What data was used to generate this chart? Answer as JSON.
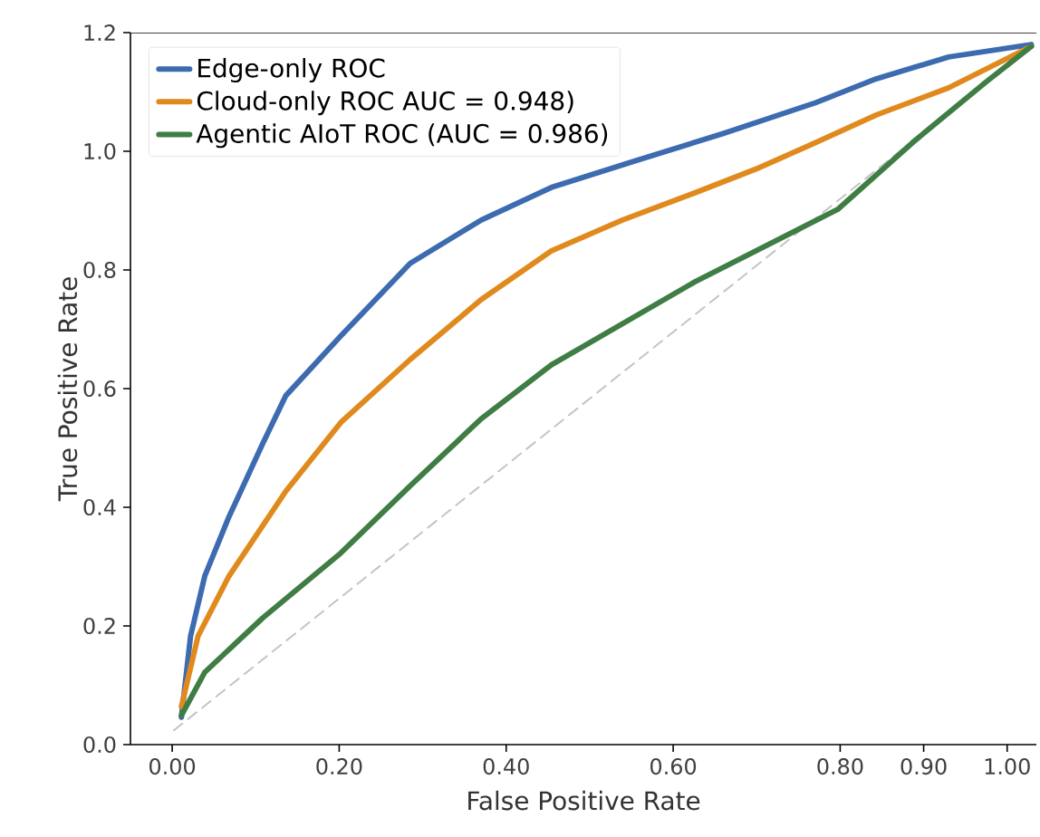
{
  "chart_data": {
    "type": "line",
    "xlabel": "False Positive Rate",
    "ylabel": "True Positive Rate",
    "xlim": [
      -0.05,
      1.035
    ],
    "ylim": [
      0,
      1.2
    ],
    "xticks": [
      {
        "value": 0,
        "label": "0.00"
      },
      {
        "value": 0.2,
        "label": "0.20"
      },
      {
        "value": 0.4,
        "label": "0.40"
      },
      {
        "value": 0.6,
        "label": "0.60"
      },
      {
        "value": 0.8,
        "label": "0.80"
      },
      {
        "value": 0.9,
        "label": "0.90"
      },
      {
        "value": 1.0,
        "label": "1.00"
      }
    ],
    "yticks": [
      {
        "value": 0,
        "label": "0.0"
      },
      {
        "value": 0.2,
        "label": "0.2"
      },
      {
        "value": 0.4,
        "label": "0.4"
      },
      {
        "value": 0.6,
        "label": "0.6"
      },
      {
        "value": 0.8,
        "label": "0.8"
      },
      {
        "value": 1.0,
        "label": "1.0"
      },
      {
        "value": 1.2,
        "label": "1.2"
      }
    ],
    "grid": false,
    "legend": "top left",
    "marker": "none",
    "series": [
      {
        "color": "#c4c4c4",
        "line_style": "dashed",
        "x": [
          0.002,
          1.021
        ],
        "values": [
          0.024,
          1.168
        ]
      },
      {
        "name": "Edge-only ROC",
        "color": "#3d6bb0",
        "x": [
          0.011,
          0.022,
          0.039,
          0.068,
          0.108,
          0.136,
          0.202,
          0.285,
          0.37,
          0.454,
          0.557,
          0.66,
          0.771,
          0.843,
          0.93,
          1.029
        ],
        "values": [
          0.046,
          0.183,
          0.284,
          0.384,
          0.506,
          0.588,
          0.689,
          0.811,
          0.884,
          0.939,
          0.985,
          1.03,
          1.082,
          1.122,
          1.159,
          1.18
        ]
      },
      {
        "name": "Cloud-only ROC AUC = 0.948)",
        "color": "#e08a1e",
        "x": [
          0.011,
          0.031,
          0.068,
          0.136,
          0.202,
          0.285,
          0.37,
          0.454,
          0.539,
          0.626,
          0.699,
          0.771,
          0.843,
          0.93,
          1.029
        ],
        "values": [
          0.064,
          0.183,
          0.284,
          0.427,
          0.543,
          0.649,
          0.75,
          0.832,
          0.884,
          0.93,
          0.97,
          1.015,
          1.061,
          1.107,
          1.177
        ]
      },
      {
        "name": "Agentic AIoT ROC (AUC = 0.986)",
        "color": "#3f7d45",
        "x": [
          0.011,
          0.039,
          0.108,
          0.202,
          0.285,
          0.37,
          0.454,
          0.626,
          0.797,
          0.887,
          0.974,
          1.029
        ],
        "values": [
          0.049,
          0.122,
          0.213,
          0.323,
          0.436,
          0.549,
          0.64,
          0.78,
          0.902,
          1.015,
          1.116,
          1.177
        ]
      }
    ]
  }
}
